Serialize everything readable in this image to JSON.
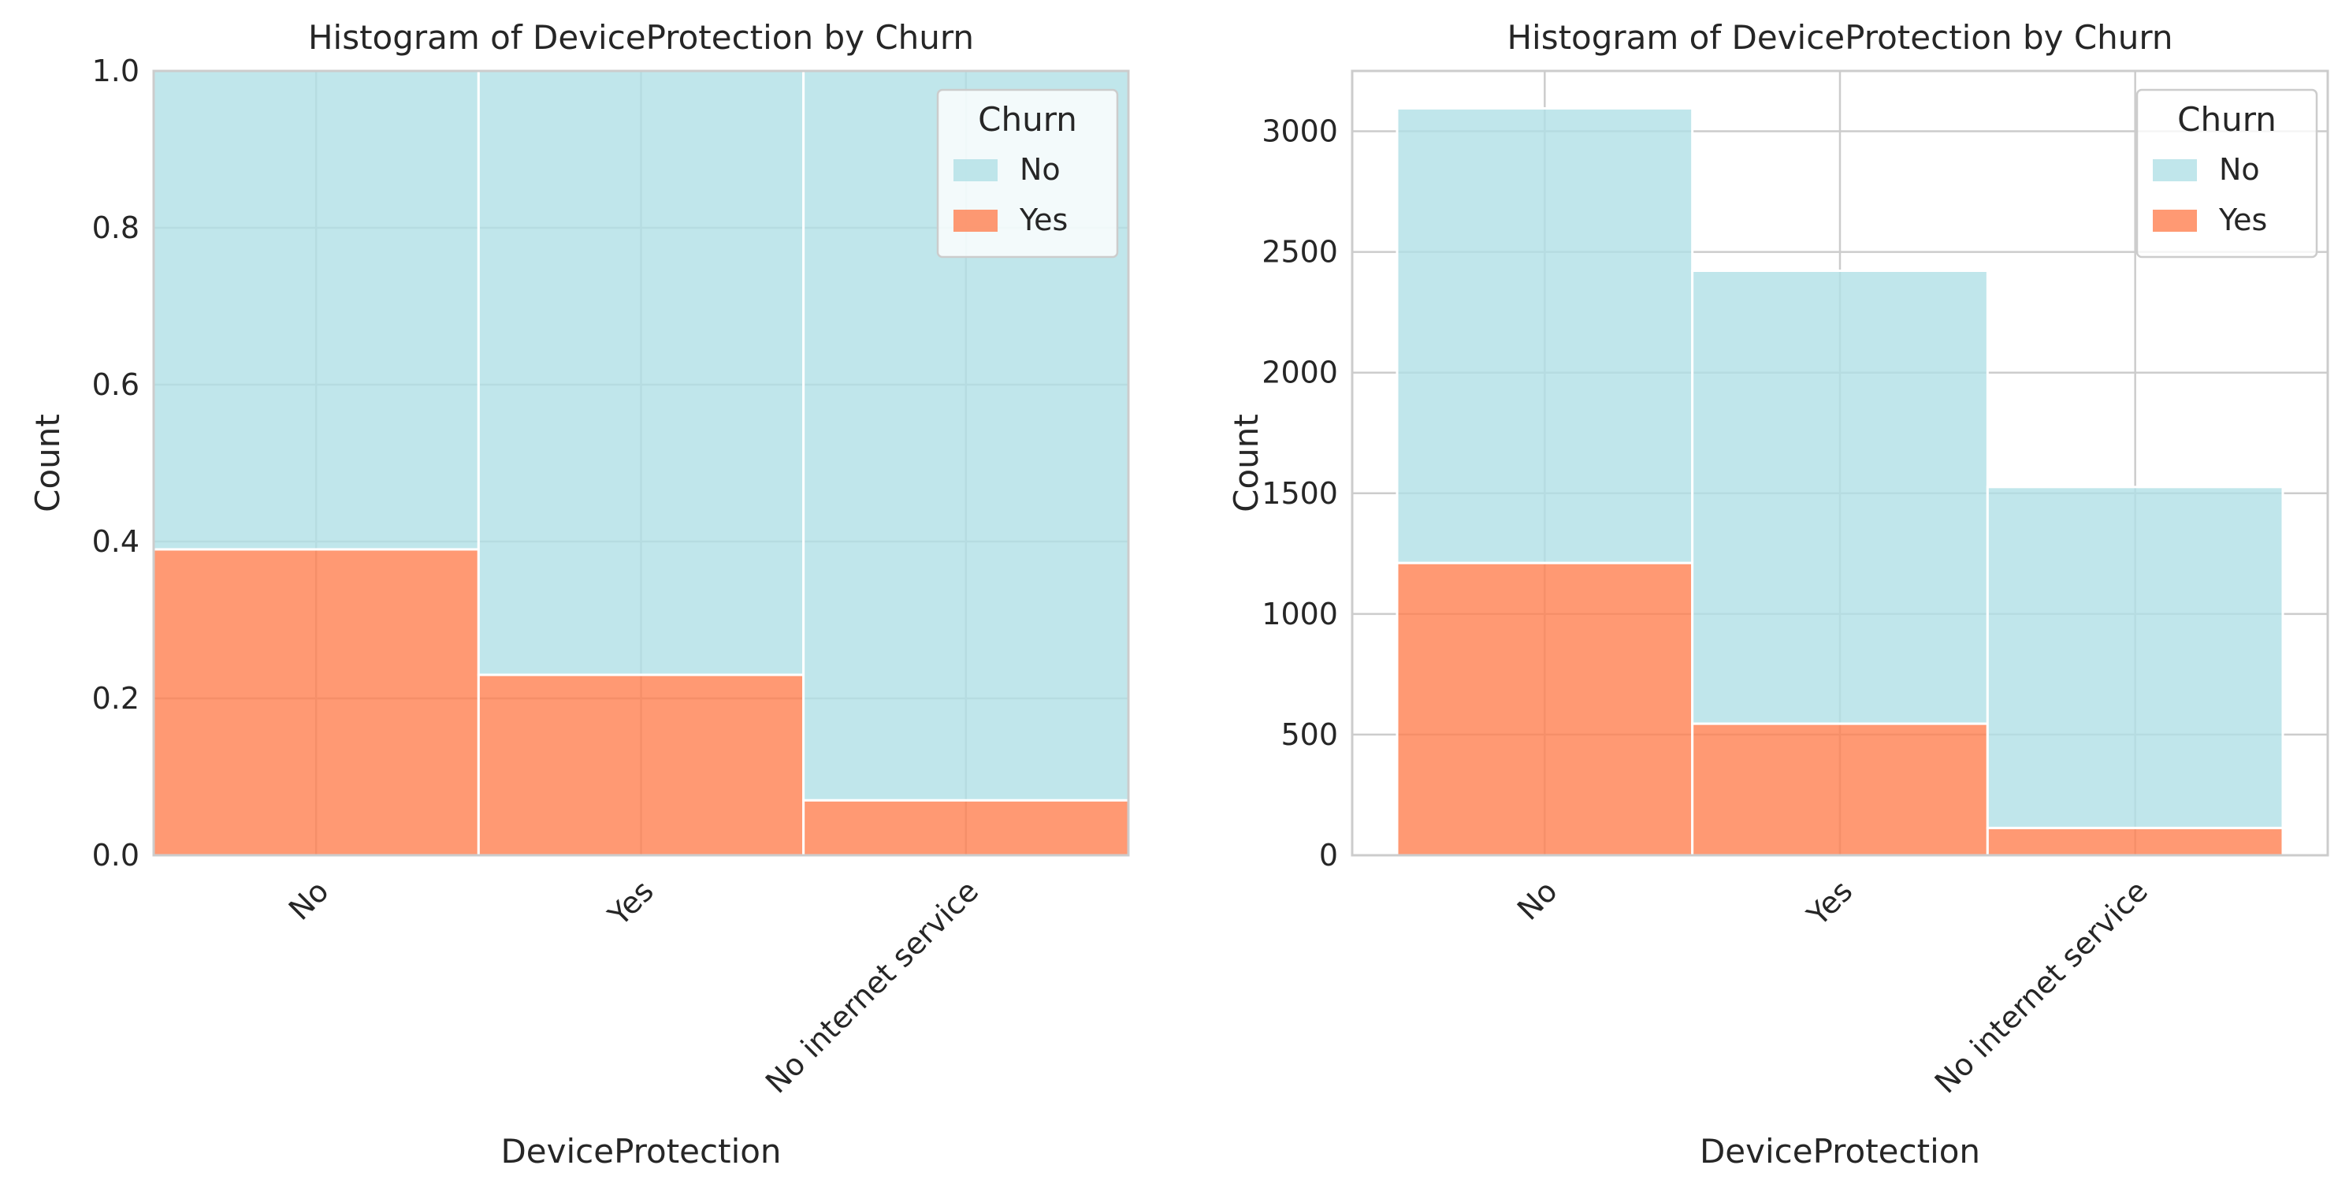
{
  "chart_data": [
    {
      "type": "bar",
      "stacked": true,
      "normalized": true,
      "title": "Histogram of DeviceProtection by Churn",
      "xlabel": "DeviceProtection",
      "ylabel": "Count",
      "categories": [
        "No",
        "Yes",
        "No internet service"
      ],
      "series": [
        {
          "name": "No",
          "values": [
            0.61,
            0.77,
            0.93
          ]
        },
        {
          "name": "Yes",
          "values": [
            0.39,
            0.23,
            0.07
          ]
        }
      ],
      "ylim": [
        0,
        1.0
      ],
      "yticks": [
        "0.0",
        "0.2",
        "0.4",
        "0.6",
        "0.8",
        "1.0"
      ],
      "grid": true,
      "legend": {
        "title": "Churn",
        "entries": [
          "No",
          "Yes"
        ],
        "placement": "top-right"
      }
    },
    {
      "type": "bar",
      "stacked": true,
      "normalized": false,
      "title": "Histogram of DeviceProtection by Churn",
      "xlabel": "DeviceProtection",
      "ylabel": "Count",
      "categories": [
        "No",
        "Yes",
        "No internet service"
      ],
      "series": [
        {
          "name": "No",
          "values": [
            1884,
            1877,
            1413
          ]
        },
        {
          "name": "Yes",
          "values": [
            1211,
            545,
            113
          ]
        }
      ],
      "ylim": [
        0,
        3250
      ],
      "yticks": [
        "0",
        "500",
        "1000",
        "1500",
        "2000",
        "2500",
        "3000"
      ],
      "grid": true,
      "legend": {
        "title": "Churn",
        "entries": [
          "No",
          "Yes"
        ],
        "placement": "top-right"
      }
    }
  ],
  "colors": {
    "no": "#b0e0e6",
    "yes": "#ff7f50",
    "grid": "#cccccc",
    "frame": "#cccccc",
    "text": "#262626"
  }
}
